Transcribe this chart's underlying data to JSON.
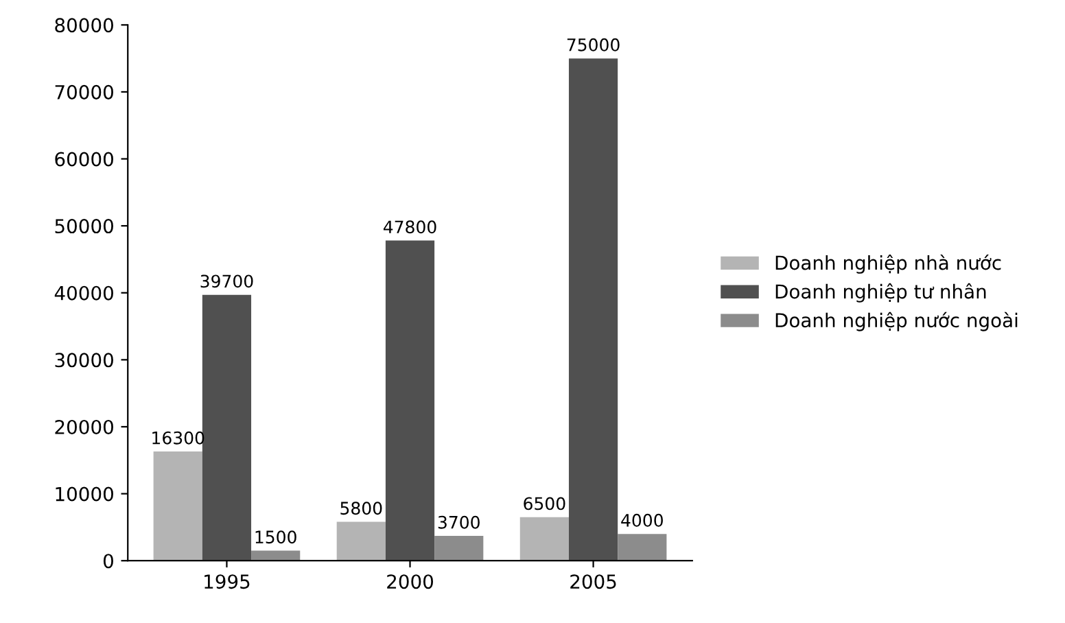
{
  "chart_data": {
    "type": "bar",
    "categories": [
      "1995",
      "2000",
      "2005"
    ],
    "series": [
      {
        "name": "Doanh nghiệp nhà nước",
        "color": "#b4b4b4",
        "values": [
          16300,
          5800,
          6500
        ]
      },
      {
        "name": "Doanh nghiệp tư nhân",
        "color": "#505050",
        "values": [
          39700,
          47800,
          75000
        ]
      },
      {
        "name": "Doanh nghiệp nước ngoài",
        "color": "#8c8c8c",
        "values": [
          1500,
          3700,
          4000
        ]
      }
    ],
    "ylim": [
      0,
      80000
    ],
    "yticks": [
      0,
      10000,
      20000,
      30000,
      40000,
      50000,
      60000,
      70000,
      80000
    ],
    "data_labels": true,
    "legend": "right",
    "grid": false
  }
}
